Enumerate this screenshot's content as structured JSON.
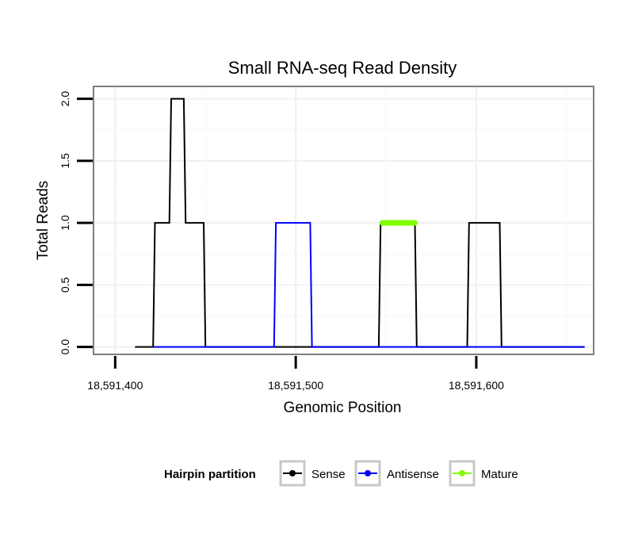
{
  "chart_data": {
    "type": "line",
    "title": "Small RNA-seq Read Density",
    "xlabel": "Genomic Position",
    "ylabel": "Total Reads",
    "xlim": [
      18591388,
      18591665
    ],
    "ylim": [
      -0.06,
      2.1
    ],
    "x_ticks": [
      18591400,
      18591500,
      18591600
    ],
    "x_tick_labels": [
      "18,591,400",
      "18,591,500",
      "18,591,600"
    ],
    "y_ticks": [
      0,
      0.5,
      1,
      1.5,
      2
    ],
    "y_tick_labels": [
      "0.0",
      "0.5",
      "1.0",
      "1.5",
      "2.0"
    ],
    "grid": true,
    "legend": {
      "title": "Hairpin partition",
      "position": "bottom"
    },
    "series": [
      {
        "name": "Sense",
        "color": "#000000",
        "x": [
          18591411,
          18591421,
          18591422,
          18591430,
          18591431,
          18591438,
          18591439,
          18591449,
          18591450,
          18591546,
          18591547,
          18591566,
          18591567,
          18591595,
          18591596,
          18591613,
          18591614,
          18591660
        ],
        "y": [
          0,
          0,
          1,
          1,
          2,
          2,
          1,
          1,
          0,
          0,
          1,
          1,
          0,
          0,
          1,
          1,
          0,
          0
        ]
      },
      {
        "name": "Antisense",
        "color": "#0000ff",
        "x": [
          18591421,
          18591488,
          18591489,
          18591508,
          18591509,
          18591660
        ],
        "y": [
          0,
          0,
          1,
          1,
          0,
          0
        ]
      },
      {
        "name": "Mature",
        "color": "#7fff00",
        "x": [
          18591548,
          18591566
        ],
        "y": [
          1,
          1
        ]
      }
    ]
  }
}
